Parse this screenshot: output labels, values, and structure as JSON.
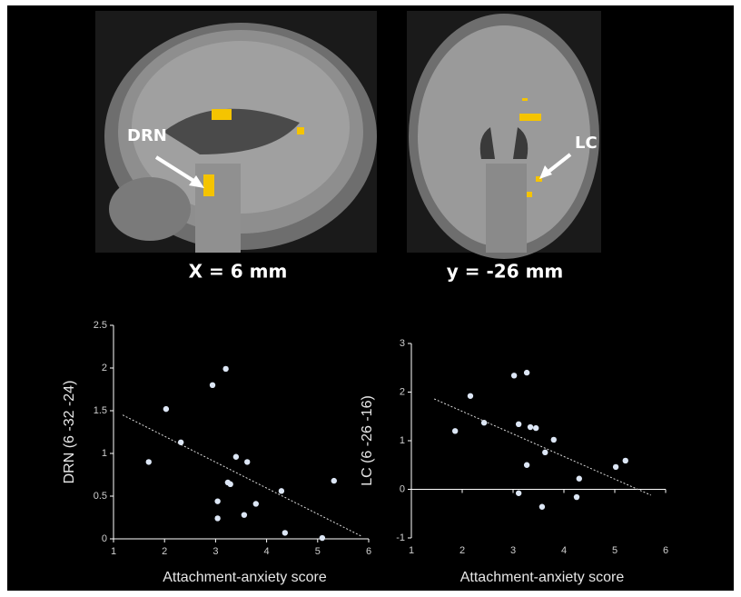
{
  "panels": [
    {
      "caption": "X = 6 mm",
      "annotation": "DRN"
    },
    {
      "caption": "y = -26 mm",
      "annotation": "LC"
    }
  ],
  "chart_data": [
    {
      "type": "scatter",
      "x_label": "Attachment-anxiety score",
      "y_label": "DRN (6 -32 -24)",
      "color": "#dce6f5",
      "x": [
        1.69,
        2.03,
        2.32,
        2.94,
        3.2,
        3.04,
        3.04,
        3.24,
        3.29,
        3.4,
        3.62,
        3.56,
        3.79,
        4.29,
        4.36,
        5.09,
        5.32
      ],
      "y": [
        0.9,
        1.52,
        1.13,
        1.8,
        1.99,
        0.44,
        0.24,
        0.66,
        0.64,
        0.96,
        0.9,
        0.28,
        0.41,
        0.56,
        0.07,
        0.01,
        0.68
      ],
      "trendline": {
        "x": [
          1.18,
          5.86
        ],
        "y": [
          1.45,
          0.03
        ]
      },
      "xlim": [
        1,
        6
      ],
      "xticks": [
        1,
        2,
        3,
        4,
        5,
        6
      ],
      "ylim": [
        0,
        2.5
      ],
      "yticks": [
        0,
        0.5,
        1,
        1.5,
        2,
        2.5
      ]
    },
    {
      "type": "scatter",
      "x_label": "Attachment-anxiety score",
      "y_label": "LC (6 -26 -16)",
      "color": "#dce6f5",
      "x": [
        1.86,
        2.16,
        2.43,
        3.02,
        3.27,
        3.11,
        3.11,
        3.27,
        3.34,
        3.45,
        3.63,
        3.57,
        3.8,
        4.3,
        4.25,
        5.02,
        5.21
      ],
      "y": [
        1.2,
        1.92,
        1.37,
        2.34,
        2.4,
        1.34,
        -0.08,
        0.5,
        1.28,
        1.26,
        0.76,
        -0.36,
        1.02,
        0.22,
        -0.16,
        0.46,
        0.59
      ],
      "trendline": {
        "x": [
          1.45,
          5.71
        ],
        "y": [
          1.86,
          -0.12
        ]
      },
      "xlim": [
        1,
        6
      ],
      "xticks": [
        1,
        2,
        3,
        4,
        5,
        6
      ],
      "ylim": [
        -1,
        3
      ],
      "yticks": [
        -1,
        0,
        1,
        2,
        3
      ]
    }
  ]
}
